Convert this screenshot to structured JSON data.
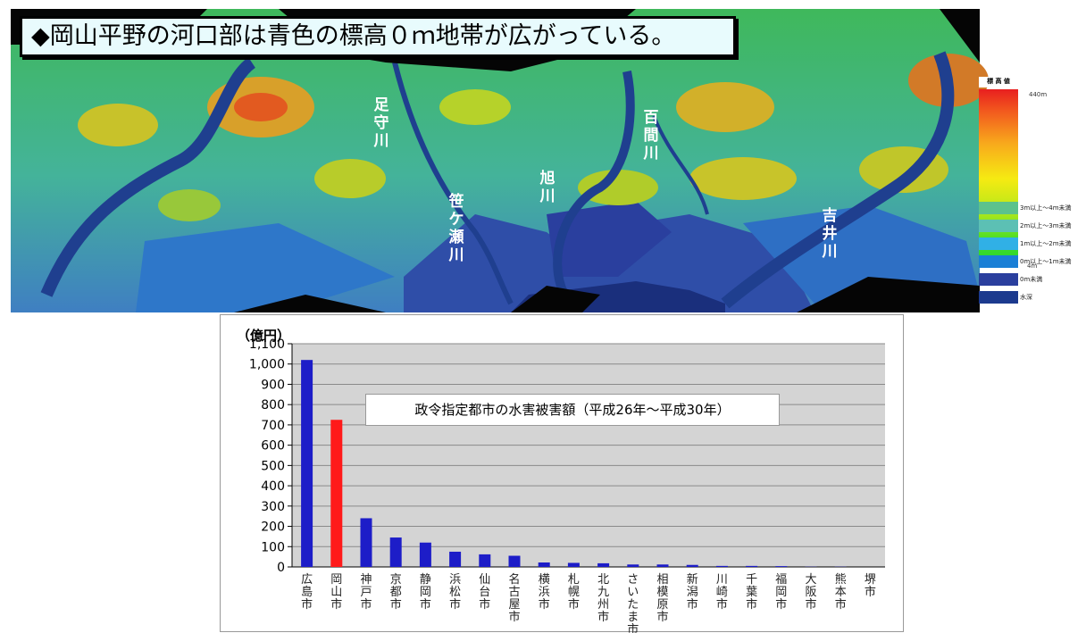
{
  "map": {
    "title": "◆岡山平野の河口部は青色の標高０ｍ地帯が広がっている。",
    "rivers": [
      "足守川",
      "笹ケ瀬川",
      "旭川",
      "百間川",
      "吉井川"
    ],
    "legend": {
      "title": "標 高 値",
      "max_label": "440m",
      "min_label": "4m",
      "items": [
        {
          "label": "3m以上～4m未満",
          "color": "#5cc28c"
        },
        {
          "label": "2m以上～3m未満",
          "color": "#5cc0b4"
        },
        {
          "label": "1m以上～2m未満",
          "color": "#30b0e6"
        },
        {
          "label": "0m以上～1m未満",
          "color": "#1a7fd6"
        },
        {
          "label": "0m未満",
          "color": "#2a3f9e"
        },
        {
          "label": "水深",
          "color": "#1c3a8e"
        }
      ]
    }
  },
  "chart_data": {
    "type": "bar",
    "title": "政令指定都市の水害被害額（平成26年～平成30年）",
    "ylabel": "（億円）",
    "ylim": [
      0,
      1100
    ],
    "yticks": [
      "0",
      "100",
      "200",
      "300",
      "400",
      "500",
      "600",
      "700",
      "800",
      "900",
      "1,000",
      "1,100"
    ],
    "grid": true,
    "categories": [
      "広島市",
      "岡山市",
      "神戸市",
      "京都市",
      "静岡市",
      "浜松市",
      "仙台市",
      "名古屋市",
      "横浜市",
      "札幌市",
      "北九州市",
      "さいたま市",
      "相模原市",
      "新潟市",
      "川崎市",
      "千葉市",
      "福岡市",
      "大阪市",
      "熊本市",
      "堺市"
    ],
    "values": [
      1020,
      725,
      240,
      145,
      120,
      75,
      62,
      55,
      22,
      20,
      18,
      12,
      12,
      10,
      5,
      5,
      4,
      1,
      1,
      0
    ],
    "colors": {
      "default": "#1d1dc8",
      "highlight": "#ff1a1a",
      "highlight_category": "岡山市"
    }
  }
}
